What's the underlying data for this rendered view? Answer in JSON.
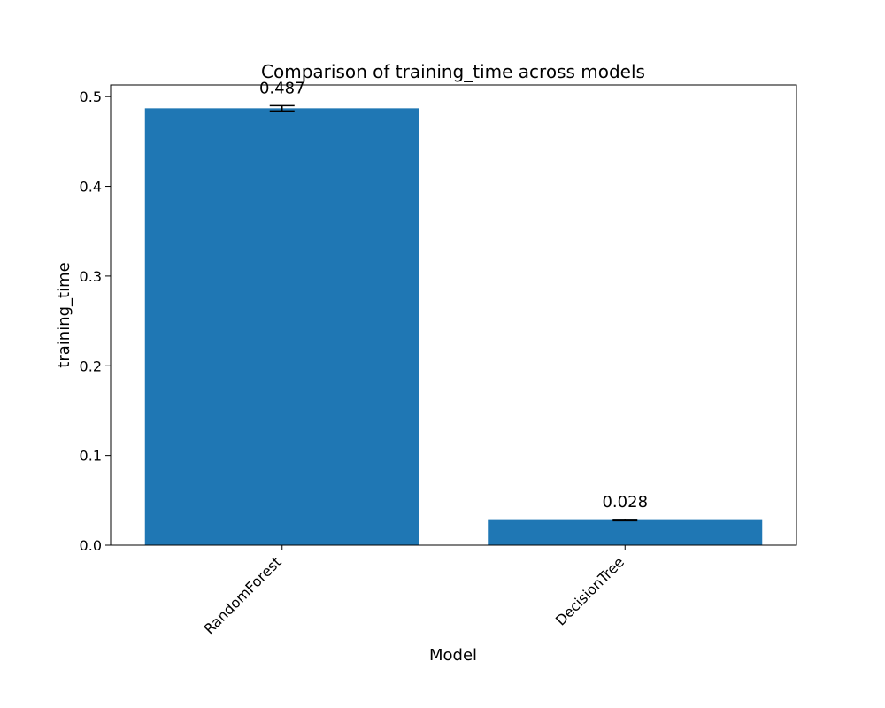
{
  "chart_data": {
    "type": "bar",
    "title": "Comparison of training_time across models",
    "xlabel": "Model",
    "ylabel": "training_time",
    "categories": [
      "RandomForest",
      "DecisionTree"
    ],
    "values": [
      0.487,
      0.028
    ],
    "value_labels": [
      "0.487",
      "0.028"
    ],
    "error": [
      0.003,
      0.0008
    ],
    "ylim": [
      0,
      0.513
    ],
    "yticks": [
      0.0,
      0.1,
      0.2,
      0.3,
      0.4,
      0.5
    ],
    "ytick_labels": [
      "0.0",
      "0.1",
      "0.2",
      "0.3",
      "0.4",
      "0.5"
    ],
    "grid": false,
    "bar_color": "#1f77b4",
    "error_color": "#000000"
  }
}
